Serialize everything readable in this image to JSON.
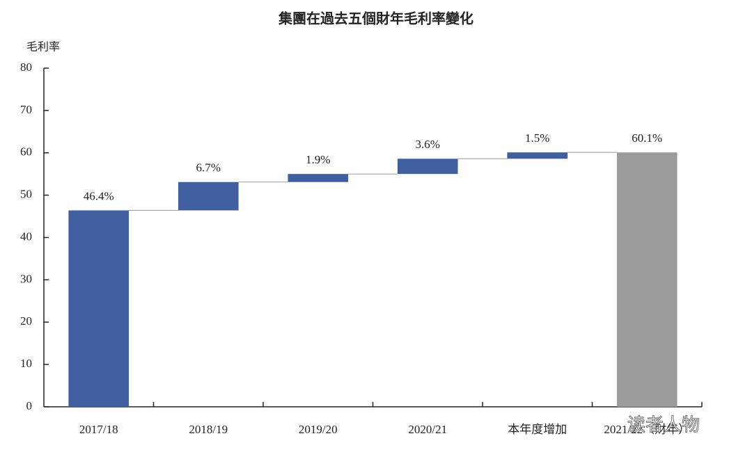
{
  "chart_data": {
    "type": "waterfall",
    "title": "集團在過去五個財年毛利率變化",
    "y_label": "毛利率",
    "categories": [
      "2017/18",
      "2018/19",
      "2019/20",
      "2020/21",
      "本年度增加",
      "2021/22（財年）"
    ],
    "measure": [
      "absolute",
      "relative",
      "relative",
      "relative",
      "relative",
      "total"
    ],
    "values": [
      46.4,
      6.7,
      1.9,
      3.6,
      1.5,
      60.1
    ],
    "value_labels": [
      "46.4%",
      "6.7%",
      "1.9%",
      "3.6%",
      "1.5%",
      "60.1%"
    ],
    "color": "#3f5fa0",
    "total_color": "#9b9b9b",
    "total_label_color": "#8b2a4a",
    "ylim": [
      0,
      80
    ],
    "yticks": [
      0,
      10,
      20,
      30,
      40,
      50,
      60,
      70,
      80
    ],
    "watermark": "读者人物"
  }
}
